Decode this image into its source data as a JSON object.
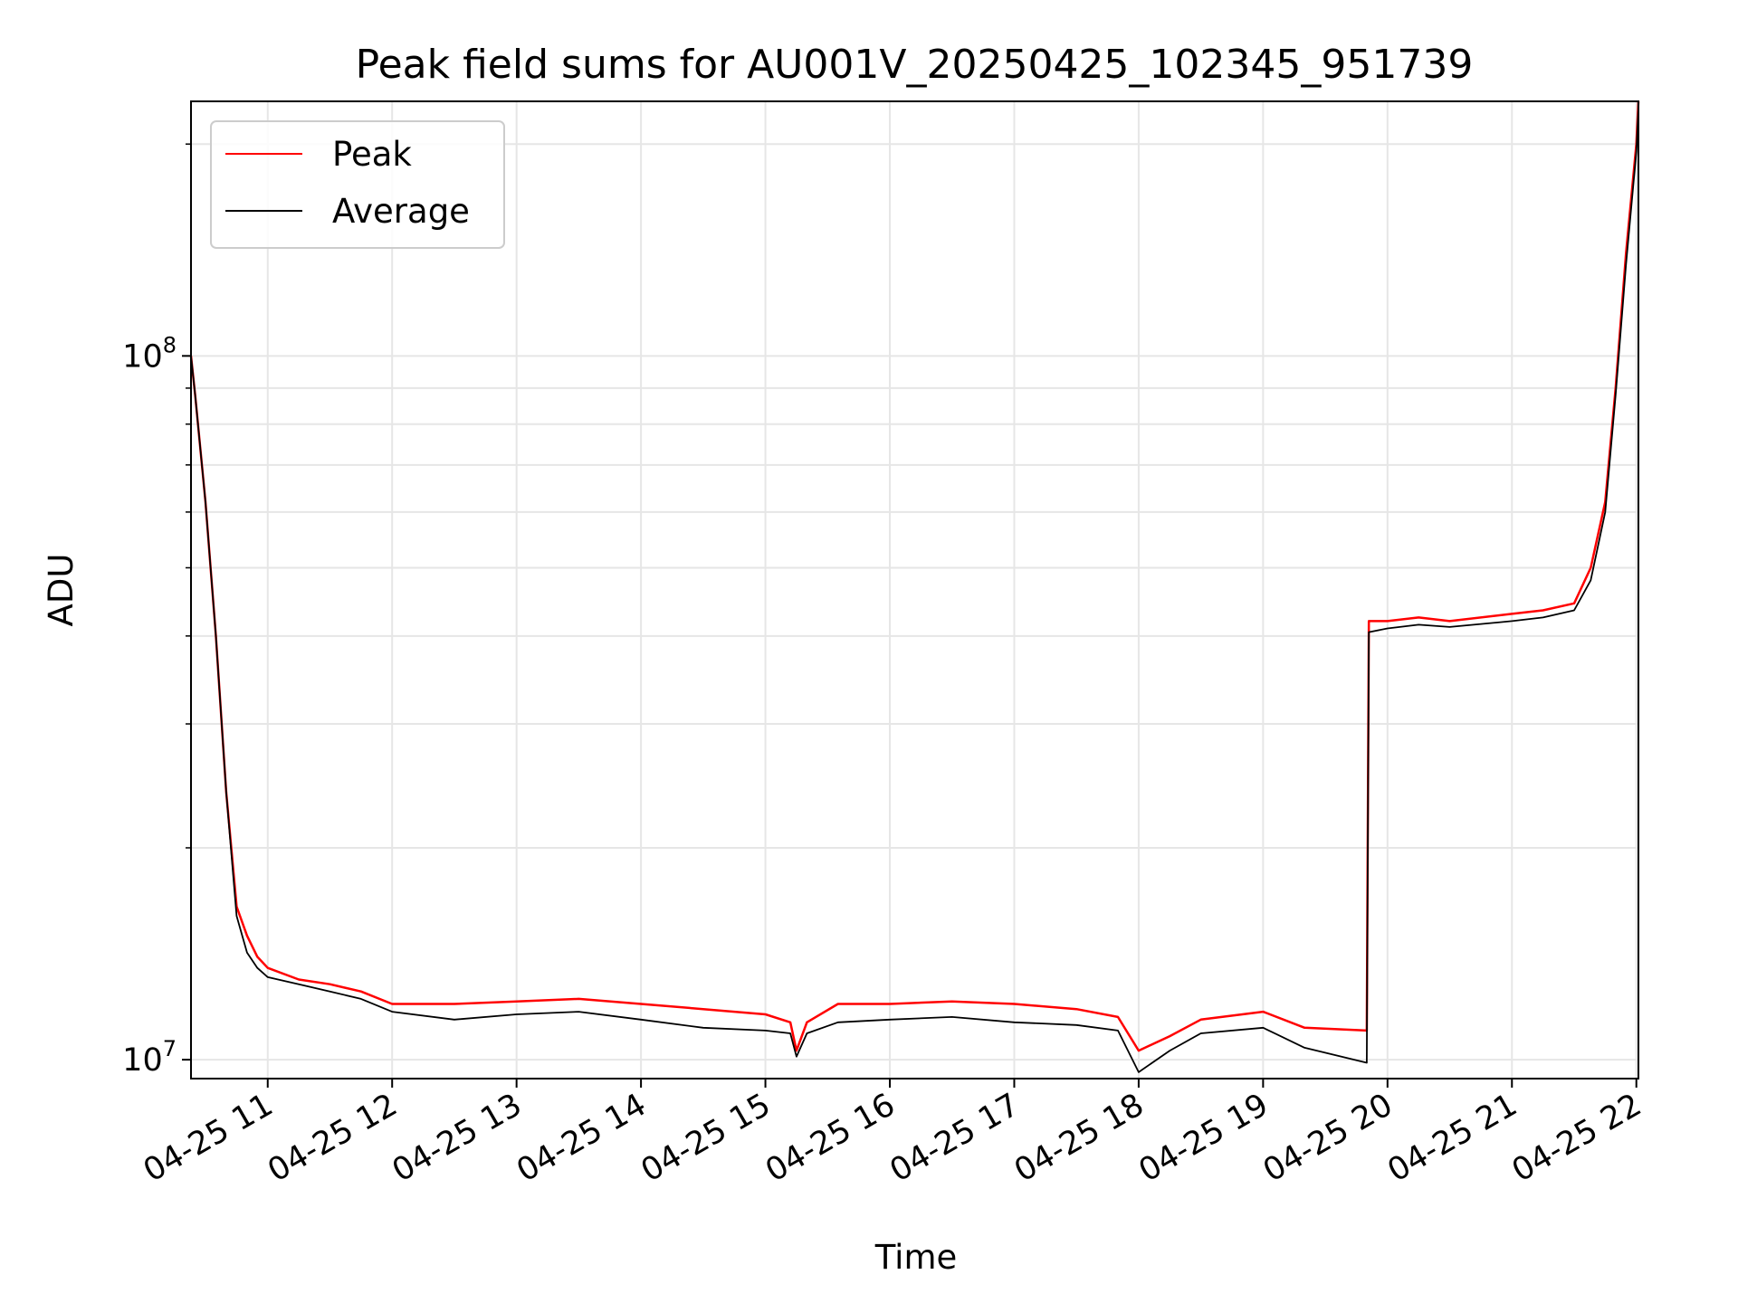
{
  "chart_data": {
    "type": "line",
    "title": "Peak field sums for AU001V_20250425_102345_951739",
    "xlabel": "Time",
    "ylabel": "ADU",
    "yscale": "log",
    "xlim": [
      "2025-04-25T10:23",
      "2025-04-25T22:01"
    ],
    "ylim": [
      9400000,
      230000000
    ],
    "x_tick_labels": [
      "04-25 11",
      "04-25 12",
      "04-25 13",
      "04-25 14",
      "04-25 15",
      "04-25 16",
      "04-25 17",
      "04-25 18",
      "04-25 19",
      "04-25 20",
      "04-25 21",
      "04-25 22"
    ],
    "x_tick_times": [
      "2025-04-25T11:00",
      "2025-04-25T12:00",
      "2025-04-25T13:00",
      "2025-04-25T14:00",
      "2025-04-25T15:00",
      "2025-04-25T16:00",
      "2025-04-25T17:00",
      "2025-04-25T18:00",
      "2025-04-25T19:00",
      "2025-04-25T20:00",
      "2025-04-25T21:00",
      "2025-04-25T22:00"
    ],
    "y_ticks": [
      {
        "value": 10000000,
        "base": "10",
        "exponent": "7"
      },
      {
        "value": 100000000,
        "base": "10",
        "exponent": "8"
      }
    ],
    "y_minor_ticks": [
      20000000,
      30000000,
      40000000,
      50000000,
      60000000,
      70000000,
      80000000,
      90000000,
      200000000
    ],
    "grid": true,
    "legend": "upper-left",
    "colors": {
      "peak": "#ff0000",
      "average": "#000000",
      "grid": "#e6e6e6"
    },
    "series": [
      {
        "name": "Peak",
        "color": "#ff0000",
        "x": [
          "2025-04-25T10:23",
          "2025-04-25T10:25",
          "2025-04-25T10:30",
          "2025-04-25T10:35",
          "2025-04-25T10:40",
          "2025-04-25T10:45",
          "2025-04-25T10:50",
          "2025-04-25T10:55",
          "2025-04-25T11:00",
          "2025-04-25T11:15",
          "2025-04-25T11:30",
          "2025-04-25T11:45",
          "2025-04-25T12:00",
          "2025-04-25T12:30",
          "2025-04-25T13:00",
          "2025-04-25T13:30",
          "2025-04-25T14:00",
          "2025-04-25T14:30",
          "2025-04-25T15:00",
          "2025-04-25T15:12",
          "2025-04-25T15:15",
          "2025-04-25T15:20",
          "2025-04-25T15:35",
          "2025-04-25T16:00",
          "2025-04-25T16:30",
          "2025-04-25T17:00",
          "2025-04-25T17:30",
          "2025-04-25T17:50",
          "2025-04-25T18:00",
          "2025-04-25T18:15",
          "2025-04-25T18:30",
          "2025-04-25T19:00",
          "2025-04-25T19:20",
          "2025-04-25T19:50",
          "2025-04-25T19:51",
          "2025-04-25T20:00",
          "2025-04-25T20:15",
          "2025-04-25T20:30",
          "2025-04-25T21:00",
          "2025-04-25T21:15",
          "2025-04-25T21:30",
          "2025-04-25T21:38",
          "2025-04-25T21:45",
          "2025-04-25T21:50",
          "2025-04-25T21:55",
          "2025-04-25T22:00",
          "2025-04-25T22:01"
        ],
        "values": [
          100000000,
          88000000,
          62000000,
          40000000,
          24000000,
          16500000,
          15000000,
          14000000,
          13500000,
          13000000,
          12800000,
          12500000,
          12000000,
          12000000,
          12100000,
          12200000,
          12000000,
          11800000,
          11600000,
          11300000,
          10300000,
          11300000,
          12000000,
          12000000,
          12100000,
          12000000,
          11800000,
          11500000,
          10300000,
          10800000,
          11400000,
          11700000,
          11100000,
          11000000,
          42000000,
          42000000,
          42500000,
          42000000,
          43000000,
          43500000,
          44500000,
          50000000,
          62000000,
          90000000,
          140000000,
          200000000,
          230000000
        ]
      },
      {
        "name": "Average",
        "color": "#000000",
        "x": [
          "2025-04-25T10:23",
          "2025-04-25T10:25",
          "2025-04-25T10:30",
          "2025-04-25T10:35",
          "2025-04-25T10:40",
          "2025-04-25T10:45",
          "2025-04-25T10:50",
          "2025-04-25T10:55",
          "2025-04-25T11:00",
          "2025-04-25T11:15",
          "2025-04-25T11:30",
          "2025-04-25T11:45",
          "2025-04-25T12:00",
          "2025-04-25T12:30",
          "2025-04-25T13:00",
          "2025-04-25T13:30",
          "2025-04-25T14:00",
          "2025-04-25T14:30",
          "2025-04-25T15:00",
          "2025-04-25T15:12",
          "2025-04-25T15:15",
          "2025-04-25T15:20",
          "2025-04-25T15:35",
          "2025-04-25T16:00",
          "2025-04-25T16:30",
          "2025-04-25T17:00",
          "2025-04-25T17:30",
          "2025-04-25T17:50",
          "2025-04-25T18:00",
          "2025-04-25T18:15",
          "2025-04-25T18:30",
          "2025-04-25T19:00",
          "2025-04-25T19:20",
          "2025-04-25T19:50",
          "2025-04-25T19:51",
          "2025-04-25T20:00",
          "2025-04-25T20:15",
          "2025-04-25T20:30",
          "2025-04-25T21:00",
          "2025-04-25T21:15",
          "2025-04-25T21:30",
          "2025-04-25T21:38",
          "2025-04-25T21:45",
          "2025-04-25T21:50",
          "2025-04-25T21:55",
          "2025-04-25T22:00",
          "2025-04-25T22:01"
        ],
        "values": [
          100000000,
          88000000,
          62000000,
          40000000,
          24000000,
          16000000,
          14200000,
          13500000,
          13100000,
          12800000,
          12500000,
          12200000,
          11700000,
          11400000,
          11600000,
          11700000,
          11400000,
          11100000,
          11000000,
          10900000,
          10100000,
          10900000,
          11300000,
          11400000,
          11500000,
          11300000,
          11200000,
          11000000,
          9600000,
          10300000,
          10900000,
          11100000,
          10400000,
          9900000,
          40500000,
          41000000,
          41500000,
          41200000,
          42000000,
          42500000,
          43500000,
          48000000,
          60000000,
          88000000,
          135000000,
          195000000,
          225000000
        ]
      }
    ]
  }
}
